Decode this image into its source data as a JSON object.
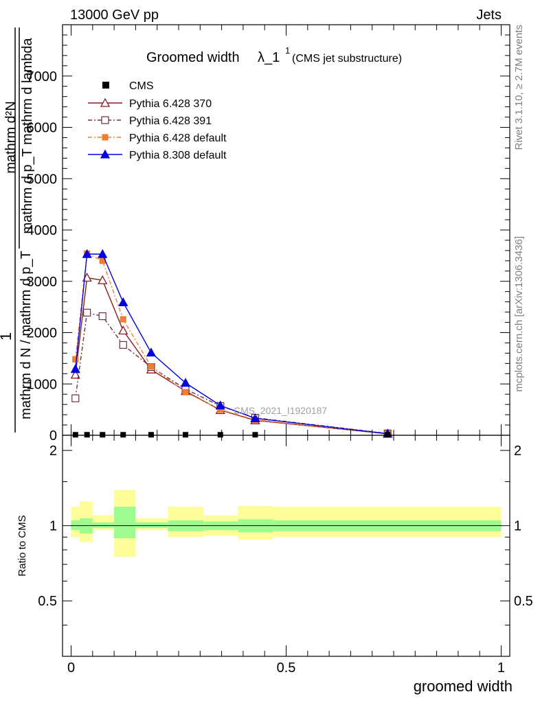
{
  "header": {
    "left": "13000 GeV pp",
    "right": "Jets"
  },
  "side_labels": {
    "rivet": "Rivet 3.1.10, ≥ 2.7M events",
    "mcplots": "mcplots.cern.ch [arXiv:1306.3436]"
  },
  "chart_data": {
    "type": "line",
    "title": "Groomed width",
    "title_math": "λ_1",
    "title_sup": "1",
    "subtitle": "(CMS jet substructure)",
    "watermark": "CMS_2021_I1920187",
    "ylabel_main": {
      "outer_num": "1",
      "outer_den": "mathrm d N / mathrm d p_T",
      "inner_num": "mathrm d²N",
      "inner_den": "mathrm d p_T mathrm d lambda"
    },
    "ylabel_ratio": "Ratio to CMS",
    "xlabel": "groomed width",
    "xlim": [
      -0.02,
      1.02
    ],
    "ylim": [
      0,
      8000
    ],
    "ratio_ylim": [
      0.3,
      2.3
    ],
    "x_ticks": [
      {
        "v": 0,
        "label": "0"
      },
      {
        "v": 0.5,
        "label": "0.5"
      },
      {
        "v": 1,
        "label": "1"
      }
    ],
    "y_ticks": [
      {
        "v": 0,
        "label": "0"
      },
      {
        "v": 1000,
        "label": "1000"
      },
      {
        "v": 2000,
        "label": "2000"
      },
      {
        "v": 3000,
        "label": "3000"
      },
      {
        "v": 4000,
        "label": "4000"
      },
      {
        "v": 5000,
        "label": "5000"
      },
      {
        "v": 6000,
        "label": "6000"
      },
      {
        "v": 7000,
        "label": "7000"
      }
    ],
    "ratio_ticks": [
      {
        "v": 0.5,
        "label": "0.5"
      },
      {
        "v": 1,
        "label": "1"
      },
      {
        "v": 2,
        "label": "2"
      }
    ],
    "x": [
      0.01,
      0.037,
      0.073,
      0.121,
      0.186,
      0.266,
      0.347,
      0.428,
      0.736
    ],
    "cms": {
      "name": "CMS",
      "color": "#000000",
      "values": [
        10,
        10,
        10,
        10,
        10,
        10,
        10,
        10,
        10
      ]
    },
    "series": [
      {
        "name": "Pythia 6.428 370",
        "color": "#8b1a1a",
        "dash": "",
        "marker": "triangle-open",
        "values": [
          1180,
          3070,
          3020,
          2040,
          1280,
          860,
          490,
          290,
          28
        ]
      },
      {
        "name": "Pythia 6.428 391",
        "color": "#6b3040",
        "dash": "6,3,2,3",
        "marker": "square-open",
        "values": [
          720,
          2390,
          2320,
          1760,
          1330,
          900,
          570,
          340,
          35
        ]
      },
      {
        "name": "Pythia 6.428 default",
        "color": "#f07e32",
        "dash": "6,3,2,3",
        "marker": "square-filled",
        "values": [
          1480,
          3540,
          3400,
          2260,
          1340,
          840,
          500,
          300,
          30
        ]
      },
      {
        "name": "Pythia 8.308 default",
        "color": "#0000e0",
        "dash": "",
        "marker": "triangle-filled",
        "values": [
          1290,
          3530,
          3530,
          2590,
          1610,
          1020,
          580,
          330,
          30
        ]
      }
    ],
    "uncertainty_bands": [
      {
        "x0": 0.0,
        "x1": 0.02,
        "inner": [
          0.96,
          1.05
        ],
        "outer": [
          0.9,
          1.19
        ]
      },
      {
        "x0": 0.02,
        "x1": 0.05,
        "inner": [
          0.93,
          1.07
        ],
        "outer": [
          0.86,
          1.25
        ]
      },
      {
        "x0": 0.05,
        "x1": 0.1,
        "inner": [
          0.98,
          1.03
        ],
        "outer": [
          0.96,
          1.1
        ]
      },
      {
        "x0": 0.1,
        "x1": 0.15,
        "inner": [
          0.89,
          1.19
        ],
        "outer": [
          0.75,
          1.39
        ]
      },
      {
        "x0": 0.15,
        "x1": 0.225,
        "inner": [
          0.98,
          1.03
        ],
        "outer": [
          0.96,
          1.07
        ]
      },
      {
        "x0": 0.225,
        "x1": 0.308,
        "inner": [
          0.95,
          1.05
        ],
        "outer": [
          0.9,
          1.19
        ]
      },
      {
        "x0": 0.308,
        "x1": 0.388,
        "inner": [
          0.96,
          1.04
        ],
        "outer": [
          0.91,
          1.1
        ]
      },
      {
        "x0": 0.388,
        "x1": 0.47,
        "inner": [
          0.94,
          1.06
        ],
        "outer": [
          0.88,
          1.2
        ]
      },
      {
        "x0": 0.47,
        "x1": 1.0,
        "inner": [
          0.95,
          1.05
        ],
        "outer": [
          0.9,
          1.19
        ]
      }
    ],
    "band_colors": {
      "inner": "#9dfb8f",
      "outer": "#fdfd9a"
    }
  }
}
